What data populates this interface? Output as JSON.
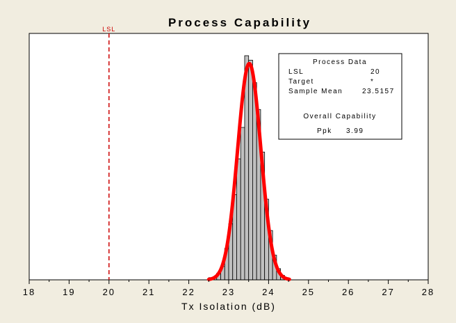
{
  "chart_data": {
    "type": "bar",
    "title": "Process Capability",
    "xlabel": "Tx Isolation (dB)",
    "ylabel": "",
    "xlim": [
      18,
      28
    ],
    "x_ticks": [
      "18",
      "19",
      "20",
      "21",
      "22",
      "23",
      "24",
      "25",
      "26",
      "27",
      "28"
    ],
    "grid": false,
    "histogram": {
      "bin_width": 0.1,
      "bins": [
        {
          "x": 22.5,
          "count": 1
        },
        {
          "x": 22.6,
          "count": 1
        },
        {
          "x": 22.7,
          "count": 3
        },
        {
          "x": 22.8,
          "count": 6
        },
        {
          "x": 22.9,
          "count": 14
        },
        {
          "x": 23.0,
          "count": 25
        },
        {
          "x": 23.1,
          "count": 38
        },
        {
          "x": 23.2,
          "count": 54
        },
        {
          "x": 23.3,
          "count": 68
        },
        {
          "x": 23.4,
          "count": 100
        },
        {
          "x": 23.5,
          "count": 98
        },
        {
          "x": 23.6,
          "count": 88
        },
        {
          "x": 23.7,
          "count": 76
        },
        {
          "x": 23.8,
          "count": 57
        },
        {
          "x": 23.9,
          "count": 36
        },
        {
          "x": 24.0,
          "count": 22
        },
        {
          "x": 24.1,
          "count": 11
        },
        {
          "x": 24.2,
          "count": 5
        },
        {
          "x": 24.3,
          "count": 2
        },
        {
          "x": 24.4,
          "count": 1
        }
      ]
    },
    "fit_curve": {
      "type": "normal",
      "mean": 23.5157,
      "sd": 0.29,
      "color": "#ff0000"
    },
    "reference_lines": [
      {
        "label": "LSL",
        "x": 20,
        "color": "#cc0000",
        "style": "dashed"
      }
    ],
    "annotation_box": {
      "placement": "top-right",
      "header": "Process Data",
      "rows": [
        {
          "label": "LSL",
          "value": "20"
        },
        {
          "label": "Target",
          "value": "*"
        },
        {
          "label": "Sample Mean",
          "value": "23.5157"
        }
      ],
      "subheader": "Overall Capability",
      "capability": {
        "label": "Ppk",
        "value": "3.99"
      }
    },
    "colors": {
      "bar_fill": "#c0c0c0",
      "bar_stroke": "#000000",
      "plot_bg": "#ffffff",
      "page_bg": "#f1ede0"
    }
  }
}
